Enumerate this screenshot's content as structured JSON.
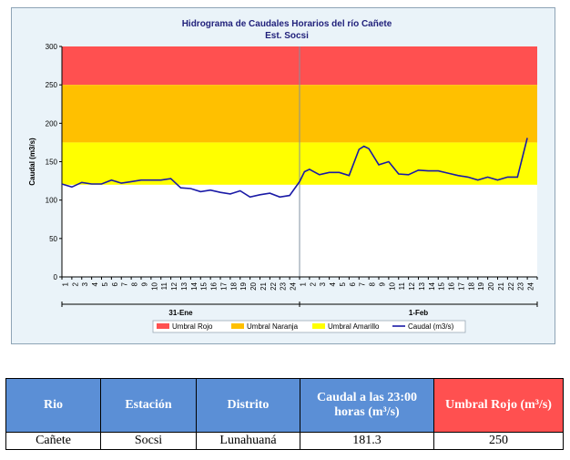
{
  "chart_data": {
    "type": "line",
    "title": "Hidrograma de Caudales Horarios del río Cañete",
    "subtitle": "Est. Socsi",
    "ylabel": "Caudal  (m3/s)",
    "ylim": [
      0,
      300
    ],
    "yticks": [
      0,
      50,
      100,
      150,
      200,
      250,
      300
    ],
    "x_hour_labels": [
      "1",
      "2",
      "3",
      "4",
      "5",
      "6",
      "7",
      "8",
      "9",
      "10",
      "11",
      "12",
      "13",
      "14",
      "15",
      "16",
      "17",
      "18",
      "19",
      "20",
      "21",
      "22",
      "23",
      "24",
      "1",
      "2",
      "3",
      "4",
      "5",
      "6",
      "7",
      "8",
      "9",
      "10",
      "11",
      "12",
      "13",
      "14",
      "15",
      "16",
      "17",
      "18",
      "19",
      "20",
      "21",
      "22",
      "23",
      "24"
    ],
    "day_labels": [
      "31-Ene",
      "1-Feb"
    ],
    "bands": [
      {
        "name": "Umbral Rojo",
        "from": 250,
        "to": 300,
        "color": "#ff5050"
      },
      {
        "name": "Umbral Naranja",
        "from": 175,
        "to": 250,
        "color": "#ffc000"
      },
      {
        "name": "Umbral Amarillo",
        "from": 120,
        "to": 175,
        "color": "#ffff00"
      }
    ],
    "series": [
      {
        "name": "Caudal (m3/s)",
        "color": "#1a1aa6",
        "x": [
          0,
          1,
          2,
          3,
          4,
          5,
          6,
          7,
          8,
          9,
          10,
          11,
          12,
          13,
          14,
          15,
          16,
          17,
          18,
          19,
          20,
          21,
          22,
          23,
          24,
          24.5,
          25,
          26,
          27,
          28,
          29,
          30,
          30.5,
          31,
          32,
          33,
          34,
          35,
          36,
          37,
          38,
          39,
          40,
          41,
          42,
          43,
          44,
          45,
          46,
          47
        ],
        "values": [
          121,
          117,
          123,
          121,
          121,
          126,
          122,
          124,
          126,
          126,
          126,
          128,
          116,
          115,
          111,
          113,
          110,
          108,
          112,
          104,
          107,
          109,
          104,
          106,
          124,
          137,
          140,
          133,
          136,
          136,
          132,
          166,
          170,
          167,
          146,
          150,
          134,
          133,
          139,
          138,
          138,
          135,
          132,
          130,
          126,
          130,
          126,
          130,
          130,
          181
        ]
      }
    ],
    "legend": [
      "Umbral Rojo",
      "Umbral Naranja",
      "Umbral Amarillo",
      "Caudal (m3/s)"
    ],
    "legend_position": "bottom",
    "grid": false
  },
  "table": {
    "headers": [
      "Rio",
      "Estación",
      "Distrito",
      "Caudal a las 23:00 horas (m³/s)",
      "Umbral Rojo (m³/s)"
    ],
    "row": [
      "Cañete",
      "Socsi",
      "Lunahuaná",
      "181.3",
      "250"
    ]
  },
  "colors": {
    "header_blue": "#5b8fd6",
    "header_red": "#ff5050",
    "plot_background": "#eaf3f9",
    "line": "#1a1aa6"
  }
}
